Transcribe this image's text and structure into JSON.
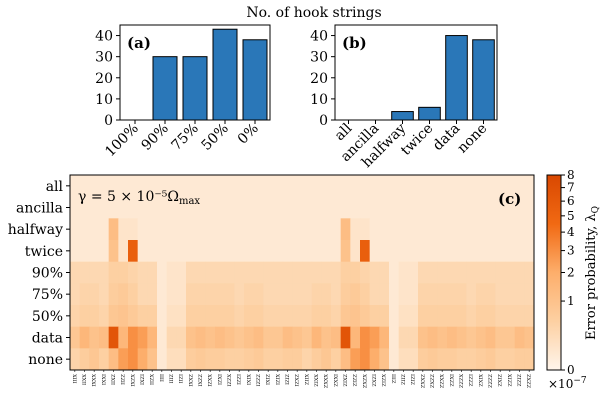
{
  "title": "No. of hook strings",
  "chart_data": [
    {
      "id": "a",
      "type": "bar",
      "panel_label": "(a)",
      "categories": [
        "100%",
        "90%",
        "75%",
        "50%",
        "0%"
      ],
      "values": [
        0,
        30,
        30,
        43,
        38
      ],
      "ylim": [
        0,
        45
      ],
      "yticks": [
        0,
        10,
        20,
        30,
        40
      ],
      "bar_color": "#2a77b8"
    },
    {
      "id": "b",
      "type": "bar",
      "panel_label": "(b)",
      "categories": [
        "all",
        "ancilla",
        "halfway",
        "twice",
        "data",
        "none"
      ],
      "values": [
        0,
        0,
        4,
        6,
        40,
        38
      ],
      "ylim": [
        0,
        45
      ],
      "yticks": [
        0,
        10,
        20,
        30,
        40
      ],
      "bar_color": "#2a77b8"
    },
    {
      "id": "c",
      "type": "heatmap",
      "panel_label": "(c)",
      "annotation": "γ = 5 × 10⁻⁵Ω",
      "annotation_sub": "max",
      "rows": [
        "all",
        "ancilla",
        "halfway",
        "twice",
        "90%",
        "75%",
        "50%",
        "data",
        "none"
      ],
      "columns": [
        "IIIX",
        "IIXX",
        "IXXX",
        "IXXI",
        "IIXZ",
        "IIZZ",
        "IXZX",
        "IXZI",
        "IIZX",
        "IIII",
        "IIIZ",
        "IIZI",
        "IXXZ",
        "IXZZ",
        "IZXX",
        "IZXI",
        "IZZX",
        "IZZI",
        "IXIX",
        "IZZZ",
        "IXIZ",
        "IZIX",
        "IZIZ",
        "IZXZ",
        "ZIIX",
        "ZIXX",
        "ZXXX",
        "ZXXI",
        "ZIXZ",
        "ZIZZ",
        "ZXZX",
        "ZXZI",
        "ZIZX",
        "ZIII",
        "ZIIZ",
        "ZIZI",
        "ZXXZ",
        "ZXZZ",
        "ZZXX",
        "ZZXI",
        "ZZZX",
        "ZZZI",
        "ZXIX",
        "ZZZZ",
        "ZXIZ",
        "ZZIX",
        "ZZIZ",
        "ZZXZ"
      ],
      "colorbar_label": "Error probability, λ",
      "colorbar_label_sub": "Q",
      "colorbar_ticks": [
        0,
        1,
        2,
        3,
        4,
        5,
        6,
        7,
        8
      ],
      "colorbar_multiplier": "×10",
      "colorbar_multiplier_exp": "−7",
      "color_scale": "sqrt",
      "value_range": [
        0,
        8
      ],
      "values": [
        [
          0.05,
          0.05,
          0.05,
          0.05,
          0.05,
          0.05,
          0.05,
          0.05,
          0.05,
          0.05,
          0.05,
          0.05,
          0.05,
          0.05,
          0.05,
          0.05,
          0.05,
          0.05,
          0.05,
          0.05,
          0.05,
          0.05,
          0.05,
          0.05,
          0.05,
          0.05,
          0.05,
          0.05,
          0.05,
          0.05,
          0.05,
          0.05,
          0.05,
          0.05,
          0.05,
          0.05,
          0.05,
          0.05,
          0.05,
          0.05,
          0.05,
          0.05,
          0.05,
          0.05,
          0.05,
          0.05,
          0.05,
          0.05
        ],
        [
          0.05,
          0.05,
          0.05,
          0.05,
          0.05,
          0.05,
          0.05,
          0.05,
          0.05,
          0.05,
          0.05,
          0.05,
          0.05,
          0.05,
          0.05,
          0.05,
          0.05,
          0.05,
          0.05,
          0.05,
          0.05,
          0.05,
          0.05,
          0.05,
          0.05,
          0.05,
          0.05,
          0.05,
          0.05,
          0.05,
          0.05,
          0.05,
          0.05,
          0.05,
          0.05,
          0.05,
          0.05,
          0.05,
          0.05,
          0.05,
          0.05,
          0.05,
          0.05,
          0.05,
          0.05,
          0.05,
          0.05,
          0.05
        ],
        [
          0.05,
          0.05,
          0.05,
          0.05,
          1.2,
          0.1,
          0.1,
          0.05,
          0.05,
          0.05,
          0.05,
          0.05,
          0.05,
          0.05,
          0.05,
          0.05,
          0.05,
          0.05,
          0.05,
          0.05,
          0.05,
          0.05,
          0.05,
          0.05,
          0.05,
          0.05,
          0.05,
          0.05,
          1.2,
          0.1,
          0.1,
          0.05,
          0.05,
          0.05,
          0.05,
          0.05,
          0.05,
          0.05,
          0.05,
          0.05,
          0.05,
          0.05,
          0.05,
          0.05,
          0.05,
          0.05,
          0.05,
          0.05
        ],
        [
          0.05,
          0.05,
          0.05,
          0.05,
          1.0,
          0.1,
          5.5,
          0.05,
          0.05,
          0.05,
          0.05,
          0.05,
          0.05,
          0.05,
          0.05,
          0.05,
          0.05,
          0.05,
          0.05,
          0.05,
          0.05,
          0.05,
          0.05,
          0.05,
          0.05,
          0.05,
          0.05,
          0.05,
          1.0,
          0.1,
          5.5,
          0.05,
          0.05,
          0.05,
          0.05,
          0.05,
          0.05,
          0.05,
          0.05,
          0.05,
          0.05,
          0.05,
          0.05,
          0.05,
          0.05,
          0.05,
          0.05,
          0.05
        ],
        [
          0.3,
          0.3,
          0.3,
          0.3,
          0.5,
          0.5,
          0.4,
          0.3,
          0.3,
          0.05,
          0.1,
          0.1,
          0.3,
          0.3,
          0.3,
          0.3,
          0.3,
          0.3,
          0.3,
          0.3,
          0.3,
          0.3,
          0.3,
          0.3,
          0.3,
          0.3,
          0.3,
          0.3,
          0.5,
          0.5,
          0.4,
          0.3,
          0.3,
          0.05,
          0.1,
          0.1,
          0.3,
          0.3,
          0.3,
          0.3,
          0.3,
          0.3,
          0.3,
          0.3,
          0.3,
          0.3,
          0.3,
          0.3
        ],
        [
          0.3,
          0.4,
          0.4,
          0.3,
          0.6,
          0.7,
          0.5,
          0.3,
          0.3,
          0.05,
          0.1,
          0.1,
          0.4,
          0.4,
          0.4,
          0.4,
          0.4,
          0.3,
          0.4,
          0.4,
          0.3,
          0.3,
          0.3,
          0.3,
          0.3,
          0.4,
          0.4,
          0.3,
          0.6,
          0.7,
          0.5,
          0.3,
          0.3,
          0.05,
          0.1,
          0.1,
          0.4,
          0.4,
          0.4,
          0.4,
          0.4,
          0.3,
          0.4,
          0.4,
          0.3,
          0.3,
          0.3,
          0.3
        ],
        [
          0.4,
          0.5,
          0.5,
          0.4,
          0.8,
          0.9,
          0.7,
          0.5,
          0.5,
          0.05,
          0.15,
          0.15,
          0.5,
          0.5,
          0.5,
          0.5,
          0.5,
          0.4,
          0.5,
          0.5,
          0.4,
          0.4,
          0.4,
          0.4,
          0.4,
          0.5,
          0.5,
          0.4,
          0.8,
          0.9,
          0.7,
          0.5,
          0.5,
          0.05,
          0.15,
          0.15,
          0.5,
          0.5,
          0.5,
          0.5,
          0.5,
          0.4,
          0.5,
          0.5,
          0.4,
          0.4,
          0.4,
          0.4
        ],
        [
          0.8,
          1.5,
          1.0,
          1.2,
          6.5,
          1.5,
          3.0,
          2.5,
          1.5,
          0.05,
          0.3,
          0.3,
          1.0,
          1.2,
          1.0,
          1.2,
          1.0,
          0.8,
          1.0,
          1.2,
          0.8,
          0.8,
          1.2,
          1.0,
          0.8,
          1.5,
          1.0,
          1.2,
          6.5,
          1.5,
          3.0,
          2.5,
          1.5,
          0.05,
          0.3,
          0.3,
          1.0,
          1.2,
          1.0,
          1.2,
          1.0,
          0.8,
          1.0,
          1.2,
          0.8,
          0.8,
          1.2,
          1.0
        ],
        [
          0.4,
          0.6,
          0.8,
          0.5,
          1.2,
          2.5,
          3.0,
          2.0,
          1.0,
          0.05,
          0.2,
          0.2,
          0.6,
          0.7,
          0.6,
          0.6,
          0.5,
          0.5,
          0.6,
          0.7,
          0.5,
          0.5,
          0.6,
          0.6,
          0.4,
          0.6,
          0.8,
          0.5,
          1.2,
          2.5,
          3.0,
          2.0,
          1.0,
          0.05,
          0.2,
          0.2,
          0.6,
          0.7,
          0.6,
          0.6,
          0.5,
          0.5,
          0.6,
          0.7,
          0.5,
          0.5,
          0.6,
          0.6
        ]
      ]
    }
  ]
}
